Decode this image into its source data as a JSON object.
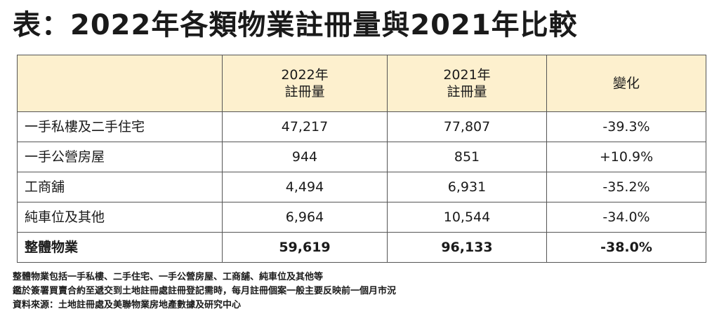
{
  "title": "表：2022年各類物業註冊量與2021年比較",
  "table": {
    "headers": [
      {
        "line1": "",
        "line2": ""
      },
      {
        "line1": "2022年",
        "line2": "註冊量"
      },
      {
        "line1": "2021年",
        "line2": "註冊量"
      },
      {
        "line1": "變化",
        "line2": ""
      }
    ],
    "rows": [
      {
        "label": "一手私樓及二手住宅",
        "y2022": "47,217",
        "y2021": "77,807",
        "change": "-39.3%"
      },
      {
        "label": "一手公營房屋",
        "y2022": "944",
        "y2021": "851",
        "change": "+10.9%"
      },
      {
        "label": "工商舖",
        "y2022": "4,494",
        "y2021": "6,931",
        "change": "-35.2%"
      },
      {
        "label": "純車位及其他",
        "y2022": "6,964",
        "y2021": "10,544",
        "change": "-34.0%"
      }
    ],
    "total": {
      "label": "整體物業",
      "y2022": "59,619",
      "y2021": "96,133",
      "change": "-38.0%"
    }
  },
  "notes": [
    "整體物業包括一手私樓、二手住宅、一手公營房屋、工商舖、純車位及其他等",
    "鑑於簽署買賣合約至遞交到土地註冊處註冊登記需時，每月註冊個案一般主要反映前一個月市況",
    "資料來源：土地註冊處及美聯物業房地產數據及研究中心"
  ],
  "colors": {
    "header_background": "#fdf0ce",
    "border": "#555555",
    "text": "#1a1a1a"
  }
}
